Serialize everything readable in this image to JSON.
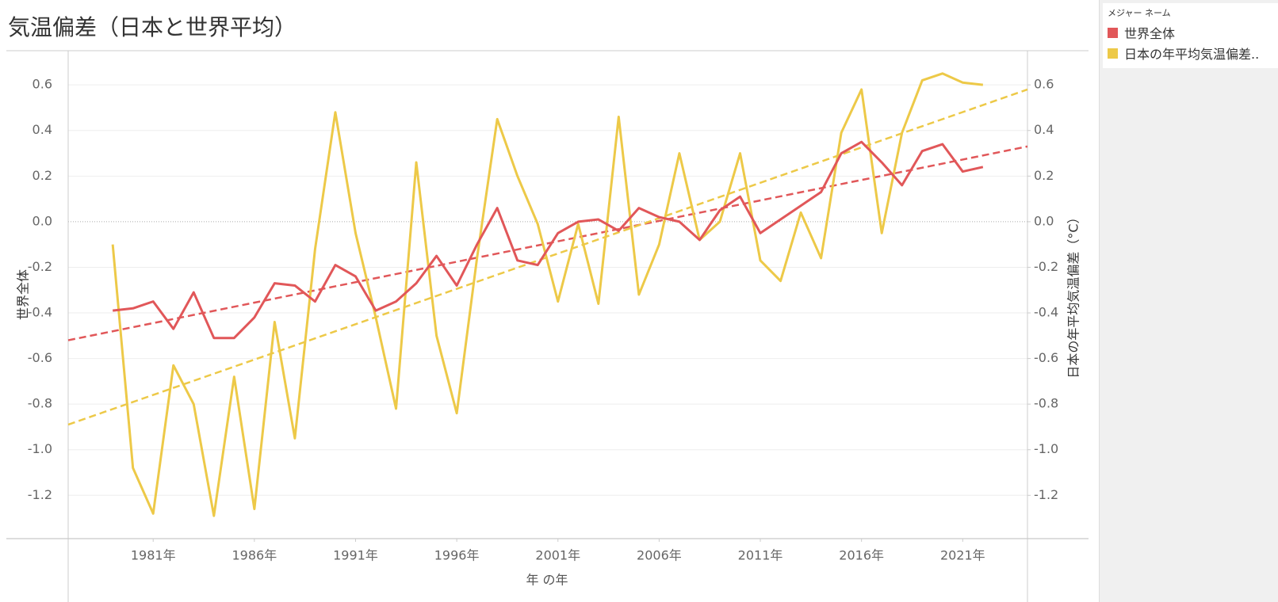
{
  "chart_data": {
    "type": "line",
    "title": "気温偏差（日本と世界平均）",
    "x_label": "年 の年",
    "y_label": "世界全体",
    "y2_label": "日本の年平均気温偏差（°C）",
    "legend_title": "メジャー ネーム",
    "x": [
      1979,
      1980,
      1981,
      1982,
      1983,
      1984,
      1985,
      1986,
      1987,
      1988,
      1989,
      1990,
      1991,
      1992,
      1993,
      1994,
      1995,
      1996,
      1997,
      1998,
      1999,
      2000,
      2001,
      2002,
      2003,
      2004,
      2005,
      2006,
      2007,
      2008,
      2009,
      2010,
      2011,
      2012,
      2013,
      2014,
      2015,
      2016,
      2017,
      2018,
      2019,
      2020,
      2021,
      2022
    ],
    "xlim": [
      1976.8,
      2024.2
    ],
    "xticks": [
      {
        "value": 1981,
        "label": "1981年"
      },
      {
        "value": 1986,
        "label": "1986年"
      },
      {
        "value": 1991,
        "label": "1991年"
      },
      {
        "value": 1996,
        "label": "1996年"
      },
      {
        "value": 2001,
        "label": "2001年"
      },
      {
        "value": 2006,
        "label": "2006年"
      },
      {
        "value": 2011,
        "label": "2011年"
      },
      {
        "value": 2016,
        "label": "2016年"
      },
      {
        "value": 2021,
        "label": "2021年"
      }
    ],
    "ylim": [
      -1.39,
      0.75
    ],
    "yticks": [
      0.6,
      0.4,
      0.2,
      {
        "value": 0,
        "label": "0.0"
      },
      -0.2,
      -0.4,
      -0.6,
      -0.8,
      {
        "value": -1,
        "label": "-1.0"
      },
      -1.2
    ],
    "y2lim": [
      -1.39,
      0.75
    ],
    "y2ticks": [
      0.6,
      0.4,
      0.2,
      {
        "value": 0,
        "label": "0.0"
      },
      -0.2,
      -0.4,
      -0.6,
      -0.8,
      {
        "value": -1,
        "label": "-1.0"
      },
      -1.2
    ],
    "grid": true,
    "series": [
      {
        "name": "世界全体",
        "color": "#e15759",
        "axis": "y",
        "values": [
          -0.39,
          -0.38,
          -0.35,
          -0.47,
          -0.31,
          -0.51,
          -0.51,
          -0.42,
          -0.27,
          -0.28,
          -0.35,
          -0.19,
          -0.24,
          -0.39,
          -0.35,
          -0.27,
          -0.15,
          -0.28,
          -0.1,
          0.06,
          -0.17,
          -0.19,
          -0.05,
          0.0,
          0.01,
          -0.04,
          0.06,
          0.02,
          0.0,
          -0.08,
          0.05,
          0.11,
          -0.05,
          0.01,
          0.07,
          0.13,
          0.3,
          0.35,
          0.26,
          0.16,
          0.31,
          0.34,
          0.22,
          0.24
        ]
      },
      {
        "name": "日本の年平均気温偏差..",
        "color": "#edc948",
        "axis": "y2",
        "values": [
          -0.1,
          -1.08,
          -1.28,
          -0.63,
          -0.8,
          -1.29,
          -0.68,
          -1.26,
          -0.44,
          -0.95,
          -0.12,
          0.48,
          -0.05,
          -0.42,
          -0.82,
          0.26,
          -0.5,
          -0.84,
          -0.16,
          0.45,
          0.2,
          -0.01,
          -0.35,
          -0.01,
          -0.36,
          0.46,
          -0.32,
          -0.1,
          0.3,
          -0.08,
          0.0,
          0.3,
          -0.17,
          -0.26,
          0.04,
          -0.16,
          0.39,
          0.58,
          -0.05,
          0.39,
          0.62,
          0.65,
          0.61,
          0.6
        ]
      }
    ],
    "trendlines": [
      {
        "color": "#e15759",
        "axis": "y",
        "x": [
          1976.8,
          2024.2
        ],
        "values": [
          -0.52,
          0.33
        ]
      },
      {
        "color": "#edc948",
        "axis": "y2",
        "x": [
          1976.8,
          2024.2
        ],
        "values": [
          -0.89,
          0.58
        ]
      }
    ]
  }
}
